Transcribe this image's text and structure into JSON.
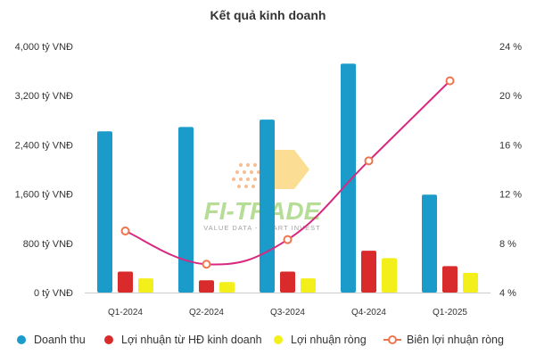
{
  "chart_data": {
    "type": "bar",
    "title": "Kết quả kinh doanh",
    "categories": [
      "Q1-2024",
      "Q2-2024",
      "Q3-2024",
      "Q4-2024",
      "Q1-2025"
    ],
    "series": [
      {
        "name": "Doanh thu",
        "kind": "bar",
        "axis": "left",
        "color": "#1a9bc9",
        "values": [
          2620,
          2690,
          2810,
          3720,
          1590
        ]
      },
      {
        "name": "Lợi nhuận từ HĐ kinh doanh",
        "kind": "bar",
        "axis": "left",
        "color": "#d92b2b",
        "values": [
          340,
          200,
          340,
          680,
          430
        ]
      },
      {
        "name": "Lợi nhuận ròng",
        "kind": "bar",
        "axis": "left",
        "color": "#f2ef1b",
        "values": [
          230,
          170,
          230,
          560,
          320
        ]
      },
      {
        "name": "Biên lợi nhuận ròng",
        "kind": "line",
        "axis": "right",
        "color": "#d9287f",
        "marker_color": "#ef7450",
        "values": [
          9.0,
          6.3,
          8.3,
          14.7,
          21.2
        ]
      }
    ],
    "y_left": {
      "ylim": [
        0,
        4000
      ],
      "ticks": [
        0,
        800,
        1600,
        2400,
        3200,
        4000
      ],
      "tick_labels": [
        "0 tỷ VNĐ",
        "800 tỷ VNĐ",
        "1,600 tỷ VNĐ",
        "2,400 tỷ VNĐ",
        "3,200 tỷ VNĐ",
        "4,000 tỷ VNĐ"
      ]
    },
    "y_right": {
      "ylim": [
        4,
        24
      ],
      "ticks": [
        4,
        8,
        12,
        16,
        20,
        24
      ],
      "tick_labels": [
        "4 %",
        "8 %",
        "12 %",
        "16 %",
        "20 %",
        "24 %"
      ]
    },
    "grid": false,
    "legend": "bottom"
  },
  "watermark": {
    "text": "FI-TRADE",
    "tagline": "VALUE DATA - SMART INVEST"
  }
}
